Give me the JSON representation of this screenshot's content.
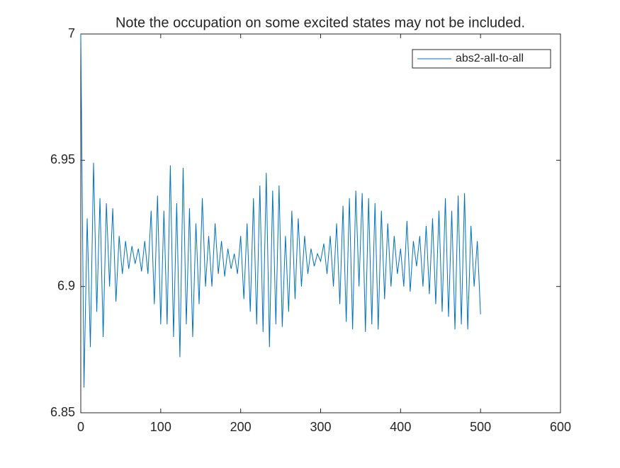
{
  "chart_data": {
    "type": "line",
    "title": "Note the occupation on some excited states may not be included.",
    "x": [
      0,
      4,
      8,
      12,
      16,
      20,
      24,
      28,
      32,
      36,
      40,
      44,
      48,
      52,
      56,
      60,
      64,
      68,
      72,
      76,
      80,
      84,
      88,
      92,
      96,
      100,
      104,
      108,
      112,
      116,
      120,
      124,
      128,
      132,
      136,
      140,
      144,
      148,
      152,
      156,
      160,
      164,
      168,
      172,
      176,
      180,
      184,
      188,
      192,
      196,
      200,
      204,
      208,
      212,
      216,
      220,
      224,
      228,
      232,
      236,
      240,
      244,
      248,
      252,
      256,
      260,
      264,
      268,
      272,
      276,
      280,
      284,
      288,
      292,
      296,
      300,
      304,
      308,
      312,
      316,
      320,
      324,
      328,
      332,
      336,
      340,
      344,
      348,
      352,
      356,
      360,
      364,
      368,
      372,
      376,
      380,
      384,
      388,
      392,
      396,
      400,
      404,
      408,
      412,
      416,
      420,
      424,
      428,
      432,
      436,
      440,
      444,
      448,
      452,
      456,
      460,
      464,
      468,
      472,
      476,
      480,
      484,
      488,
      492,
      496,
      500
    ],
    "series": [
      {
        "name": "abs2-all-to-all",
        "color": "#0072bd",
        "values": [
          7,
          6.86,
          6.927,
          6.876,
          6.949,
          6.89,
          6.935,
          6.88,
          6.933,
          6.9,
          6.931,
          6.894,
          6.92,
          6.905,
          6.918,
          6.907,
          6.916,
          6.909,
          6.915,
          6.906,
          6.918,
          6.905,
          6.93,
          6.893,
          6.936,
          6.885,
          6.93,
          6.885,
          6.948,
          6.88,
          6.933,
          6.872,
          6.947,
          6.885,
          6.931,
          6.88,
          6.925,
          6.893,
          6.935,
          6.9,
          6.92,
          6.9,
          6.925,
          6.905,
          6.918,
          6.904,
          6.915,
          6.907,
          6.913,
          6.905,
          6.92,
          6.895,
          6.925,
          6.89,
          6.935,
          6.885,
          6.94,
          6.882,
          6.945,
          6.876,
          6.938,
          6.885,
          6.94,
          6.884,
          6.92,
          6.89,
          6.93,
          6.895,
          6.927,
          6.9,
          6.92,
          6.905,
          6.915,
          6.908,
          6.913,
          6.91,
          6.917,
          6.905,
          6.92,
          6.9,
          6.925,
          6.893,
          6.932,
          6.886,
          6.935,
          6.883,
          6.938,
          6.9,
          6.937,
          6.882,
          6.935,
          6.885,
          6.933,
          6.883,
          6.93,
          6.895,
          6.925,
          6.9,
          6.92,
          6.905,
          6.915,
          6.9,
          6.926,
          6.898,
          6.918,
          6.908,
          6.92,
          6.9,
          6.924,
          6.897,
          6.927,
          6.893,
          6.93,
          6.89,
          6.935,
          6.888,
          6.93,
          6.883,
          6.936,
          6.885,
          6.937,
          6.883,
          6.924,
          6.9,
          6.918,
          6.889
        ]
      }
    ],
    "xlim": [
      0,
      600
    ],
    "xticks": [
      0,
      100,
      200,
      300,
      400,
      500,
      600
    ],
    "ylim": [
      6.85,
      7
    ],
    "yticks": [
      6.85,
      6.9,
      6.95,
      7
    ],
    "legend": "northeast"
  }
}
